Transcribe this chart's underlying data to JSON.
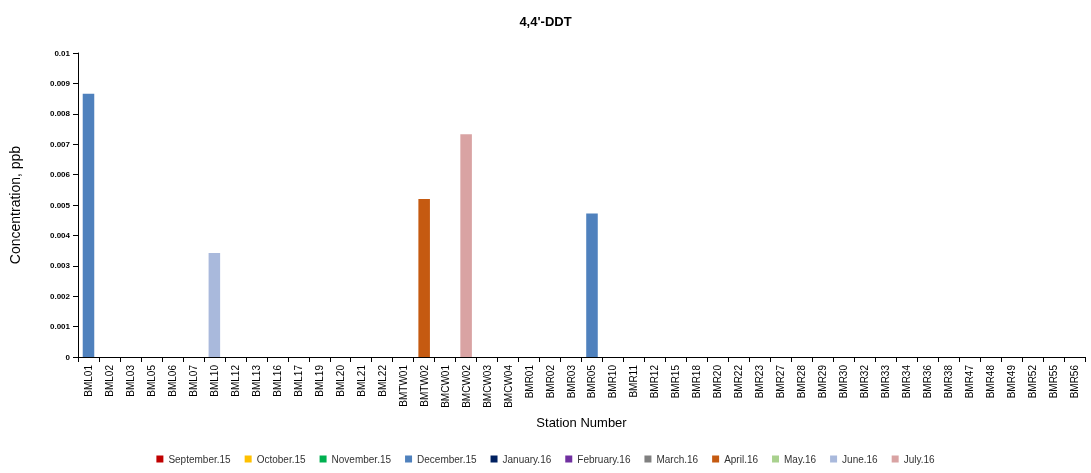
{
  "chart_data": {
    "type": "bar",
    "title": "4,4'-DDT",
    "xlabel": "Station Number",
    "ylabel": "Concentration, ppb",
    "stacked": true,
    "grid": false,
    "legend": "bottom",
    "categories": [
      "BML01",
      "BML02",
      "BML03",
      "BML05",
      "BML06",
      "BML07",
      "BML10",
      "BML12",
      "BML13",
      "BML16",
      "BML17",
      "BML19",
      "BML20",
      "BML21",
      "BML22",
      "BMTW01",
      "BMTW02",
      "BMCW01",
      "BMCW02",
      "BMCW03",
      "BMCW04",
      "BMR01",
      "BMR02",
      "BMR03",
      "BMR05",
      "BMR10",
      "BMR11",
      "BMR12",
      "BMR15",
      "BMR18",
      "BMR20",
      "BMR22",
      "BMR23",
      "BMR27",
      "BMR28",
      "BMR29",
      "BMR30",
      "BMR32",
      "BMR33",
      "BMR34",
      "BMR36",
      "BMR38",
      "BMR47",
      "BMR48",
      "BMR49",
      "BMR52",
      "BMR55",
      "BMR56"
    ],
    "ylim": [
      0,
      0.01
    ],
    "yticks": [
      0,
      0.001,
      0.002,
      0.003,
      0.004,
      0.005,
      0.006,
      0.007,
      0.008,
      0.009,
      0.01
    ],
    "series": [
      {
        "name": "September.15",
        "color": "#c00000",
        "values": [
          null,
          null,
          null,
          null,
          null,
          null,
          null,
          null,
          null,
          null,
          null,
          null,
          null,
          null,
          null,
          null,
          null,
          null,
          null,
          null,
          null,
          null,
          null,
          null,
          null,
          null,
          null,
          null,
          null,
          null,
          null,
          null,
          null,
          null,
          null,
          null,
          null,
          null,
          null,
          null,
          null,
          null,
          null,
          null,
          null,
          null,
          null,
          null
        ]
      },
      {
        "name": "October.15",
        "color": "#ffc000",
        "values": [
          null,
          null,
          null,
          null,
          null,
          null,
          null,
          null,
          null,
          null,
          null,
          null,
          null,
          null,
          null,
          null,
          null,
          null,
          null,
          null,
          null,
          null,
          null,
          null,
          null,
          null,
          null,
          null,
          null,
          null,
          null,
          null,
          null,
          null,
          null,
          null,
          null,
          null,
          null,
          null,
          null,
          null,
          null,
          null,
          null,
          null,
          null,
          null
        ]
      },
      {
        "name": "November.15",
        "color": "#00b050",
        "values": [
          null,
          null,
          null,
          null,
          null,
          null,
          null,
          null,
          null,
          null,
          null,
          null,
          null,
          null,
          null,
          null,
          null,
          null,
          null,
          null,
          null,
          null,
          null,
          null,
          null,
          null,
          null,
          null,
          null,
          null,
          null,
          null,
          null,
          null,
          null,
          null,
          null,
          null,
          null,
          null,
          null,
          null,
          null,
          null,
          null,
          null,
          null,
          null
        ]
      },
      {
        "name": "December.15",
        "color": "#4f81bd",
        "values": [
          0.00866,
          null,
          null,
          null,
          null,
          null,
          null,
          null,
          null,
          null,
          null,
          null,
          null,
          null,
          null,
          null,
          null,
          null,
          null,
          null,
          null,
          null,
          null,
          null,
          0.00472,
          null,
          null,
          null,
          null,
          null,
          null,
          null,
          null,
          null,
          null,
          null,
          null,
          null,
          null,
          null,
          null,
          null,
          null,
          null,
          null,
          null,
          null,
          null
        ]
      },
      {
        "name": "January.16",
        "color": "#002060",
        "values": [
          null,
          null,
          null,
          null,
          null,
          null,
          null,
          null,
          null,
          null,
          null,
          null,
          null,
          null,
          null,
          null,
          null,
          null,
          null,
          null,
          null,
          null,
          null,
          null,
          null,
          null,
          null,
          null,
          null,
          null,
          null,
          null,
          null,
          null,
          null,
          null,
          null,
          null,
          null,
          null,
          null,
          null,
          null,
          null,
          null,
          null,
          null,
          null
        ]
      },
      {
        "name": "February.16",
        "color": "#7030a0",
        "values": [
          null,
          null,
          null,
          null,
          null,
          null,
          null,
          null,
          null,
          null,
          null,
          null,
          null,
          null,
          null,
          null,
          null,
          null,
          null,
          null,
          null,
          null,
          null,
          null,
          null,
          null,
          null,
          null,
          null,
          null,
          null,
          null,
          null,
          null,
          null,
          null,
          null,
          null,
          null,
          null,
          null,
          null,
          null,
          null,
          null,
          null,
          null,
          null
        ]
      },
      {
        "name": "March.16",
        "color": "#808080",
        "values": [
          null,
          null,
          null,
          null,
          null,
          null,
          null,
          null,
          null,
          null,
          null,
          null,
          null,
          null,
          null,
          null,
          null,
          null,
          null,
          null,
          null,
          null,
          null,
          null,
          null,
          null,
          null,
          null,
          null,
          null,
          null,
          null,
          null,
          null,
          null,
          null,
          null,
          null,
          null,
          null,
          null,
          null,
          null,
          null,
          null,
          null,
          null,
          null
        ]
      },
      {
        "name": "April.16",
        "color": "#c55a11",
        "values": [
          null,
          null,
          null,
          null,
          null,
          null,
          null,
          null,
          null,
          null,
          null,
          null,
          null,
          null,
          null,
          null,
          0.0052,
          null,
          null,
          null,
          null,
          null,
          null,
          null,
          null,
          null,
          null,
          null,
          null,
          null,
          null,
          null,
          null,
          null,
          null,
          null,
          null,
          null,
          null,
          null,
          null,
          null,
          null,
          null,
          null,
          null,
          null,
          null
        ]
      },
      {
        "name": "May.16",
        "color": "#a9d18e",
        "values": [
          null,
          null,
          null,
          null,
          null,
          null,
          null,
          null,
          null,
          null,
          null,
          null,
          null,
          null,
          null,
          null,
          null,
          null,
          null,
          null,
          null,
          null,
          null,
          null,
          null,
          null,
          null,
          null,
          null,
          null,
          null,
          null,
          null,
          null,
          null,
          null,
          null,
          null,
          null,
          null,
          null,
          null,
          null,
          null,
          null,
          null,
          null,
          null
        ]
      },
      {
        "name": "June.16",
        "color": "#a9b9dc",
        "values": [
          null,
          null,
          null,
          null,
          null,
          null,
          0.00342,
          null,
          null,
          null,
          null,
          null,
          null,
          null,
          null,
          null,
          null,
          null,
          null,
          null,
          null,
          null,
          null,
          null,
          null,
          null,
          null,
          null,
          null,
          null,
          null,
          null,
          null,
          null,
          null,
          null,
          null,
          null,
          null,
          null,
          null,
          null,
          null,
          null,
          null,
          null,
          null,
          null
        ]
      },
      {
        "name": "July.16",
        "color": "#d9a3a3",
        "values": [
          null,
          null,
          null,
          null,
          null,
          null,
          null,
          null,
          null,
          null,
          null,
          null,
          null,
          null,
          null,
          null,
          null,
          null,
          0.00733,
          null,
          null,
          null,
          null,
          null,
          null,
          null,
          null,
          null,
          null,
          null,
          null,
          null,
          null,
          null,
          null,
          null,
          null,
          null,
          null,
          null,
          null,
          null,
          null,
          null,
          null,
          null,
          null,
          null
        ]
      }
    ]
  }
}
